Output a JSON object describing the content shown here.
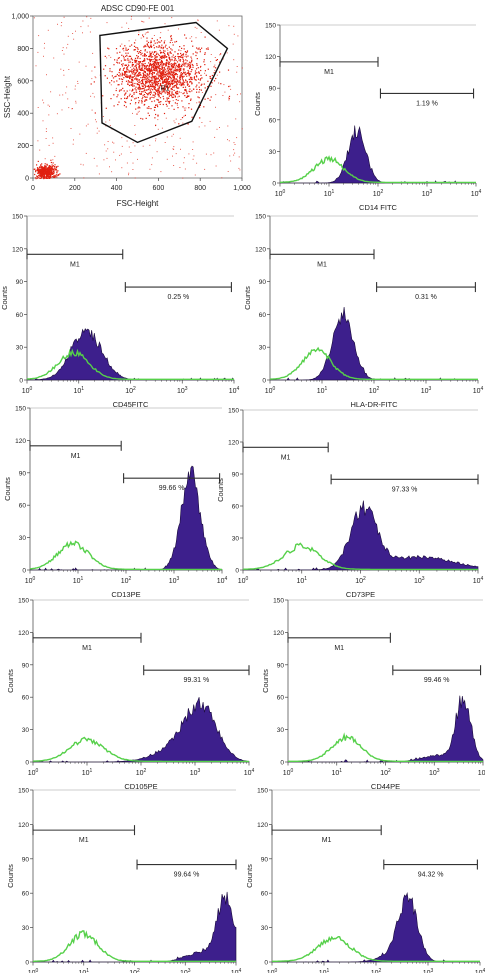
{
  "scatter": {
    "title": "ADSC CD90-FE 001",
    "xlabel": "FSC-Height",
    "ylabel": "SSC-Height",
    "gate_label": "R1",
    "x_ticks": [
      "0",
      "200",
      "400",
      "600",
      "800",
      "1,000"
    ],
    "y_ticks": [
      "0",
      "200",
      "400",
      "600",
      "800",
      "1,000"
    ],
    "colors": {
      "dots": "#e02010",
      "gate": "#111111"
    }
  },
  "histogram_common": {
    "ylabel": "Counts",
    "y_ticks": [
      "0",
      "30",
      "60",
      "90",
      "120",
      "150"
    ],
    "x_ticks": [
      "10^0",
      "10^1",
      "10^2",
      "10^3",
      "10^4"
    ],
    "gate_label": "M1",
    "colors": {
      "sample": "#3d1f8c",
      "control": "#56d04a",
      "marker": "#333333"
    }
  },
  "chart_data": [
    {
      "type": "scatter",
      "title": "ADSC CD90-FE 001",
      "xlabel": "FSC-Height",
      "ylabel": "SSC-Height",
      "xlim": [
        0,
        1000
      ],
      "ylim": [
        0,
        1000
      ],
      "clusters": [
        {
          "name": "",
          "center": [
            600,
            640
          ],
          "spread": [
            180,
            160
          ],
          "count": 1600
        },
        {
          "name": "",
          "center": [
            60,
            40
          ],
          "spread": [
            40,
            40
          ],
          "count": 450
        }
      ],
      "gate_R1": [
        [
          320,
          880
        ],
        [
          780,
          960
        ],
        [
          930,
          800
        ],
        [
          760,
          350
        ],
        [
          500,
          220
        ],
        [
          330,
          340
        ]
      ]
    },
    {
      "type": "histogram",
      "xlabel": "CD14 FITC",
      "percent": "1.19 %",
      "xlim": [
        0,
        4
      ],
      "ylim": [
        0,
        150
      ],
      "m1": [
        0,
        2
      ],
      "m2": [
        2.05,
        3.95
      ],
      "sample_peaks": [
        [
          1.57,
          0.18,
          50
        ]
      ],
      "control_peaks": [
        [
          1.0,
          0.3,
          22
        ]
      ]
    },
    {
      "type": "histogram",
      "xlabel": "CD45FITC",
      "percent": "0.25 %",
      "xlim": [
        0,
        4
      ],
      "ylim": [
        0,
        150
      ],
      "m1": [
        0,
        1.85
      ],
      "m2": [
        1.9,
        3.95
      ],
      "sample_peaks": [
        [
          1.15,
          0.3,
          43
        ]
      ],
      "control_peaks": [
        [
          0.9,
          0.3,
          24
        ]
      ]
    },
    {
      "type": "histogram",
      "xlabel": "HLA-DR-FITC",
      "percent": "0.31 %",
      "xlim": [
        0,
        4
      ],
      "ylim": [
        0,
        150
      ],
      "m1": [
        0,
        2.0
      ],
      "m2": [
        2.05,
        3.95
      ],
      "sample_peaks": [
        [
          1.4,
          0.2,
          60
        ]
      ],
      "control_peaks": [
        [
          0.9,
          0.28,
          26
        ]
      ]
    },
    {
      "type": "histogram",
      "xlabel": "CD13PE",
      "percent": "99.66 %",
      "xlim": [
        0,
        4
      ],
      "ylim": [
        0,
        150
      ],
      "m1": [
        0,
        1.9
      ],
      "m2": [
        1.95,
        3.95
      ],
      "sample_peaks": [
        [
          3.35,
          0.2,
          88
        ]
      ],
      "control_peaks": [
        [
          0.9,
          0.32,
          24
        ]
      ]
    },
    {
      "type": "histogram",
      "xlabel": "CD73PE",
      "percent": "97.33 %",
      "xlim": [
        0,
        4
      ],
      "ylim": [
        0,
        150
      ],
      "m1": [
        0,
        1.45
      ],
      "m2": [
        1.5,
        4.0
      ],
      "sample_peaks": [
        [
          2.05,
          0.22,
          55
        ],
        [
          3.0,
          0.6,
          12
        ]
      ],
      "control_peaks": [
        [
          1.0,
          0.3,
          22
        ]
      ]
    },
    {
      "type": "histogram",
      "xlabel": "CD105PE",
      "percent": "99.31 %",
      "xlim": [
        0,
        4
      ],
      "ylim": [
        0,
        150
      ],
      "m1": [
        0,
        2.0
      ],
      "m2": [
        2.05,
        4.0
      ],
      "sample_peaks": [
        [
          3.1,
          0.3,
          50
        ],
        [
          2.6,
          0.4,
          10
        ]
      ],
      "control_peaks": [
        [
          1.0,
          0.32,
          20
        ]
      ]
    },
    {
      "type": "histogram",
      "xlabel": "CD44PE",
      "percent": "99.46 %",
      "xlim": [
        0,
        4
      ],
      "ylim": [
        0,
        150
      ],
      "m1": [
        0,
        2.1
      ],
      "m2": [
        2.15,
        3.95
      ],
      "sample_peaks": [
        [
          3.6,
          0.15,
          58
        ],
        [
          3.1,
          0.35,
          6
        ]
      ],
      "control_peaks": [
        [
          1.2,
          0.3,
          22
        ]
      ]
    },
    {
      "type": "histogram",
      "xlabel": "CD90PE",
      "percent": "99.64 %",
      "xlim": [
        0,
        4
      ],
      "ylim": [
        0,
        150
      ],
      "m1": [
        0,
        2.0
      ],
      "m2": [
        2.05,
        4.0
      ],
      "sample_peaks": [
        [
          3.8,
          0.17,
          55
        ],
        [
          3.3,
          0.3,
          8
        ]
      ],
      "control_peaks": [
        [
          1.0,
          0.28,
          24
        ]
      ]
    },
    {
      "type": "histogram",
      "xlabel": "CD166PE",
      "percent": "94.32 %",
      "xlim": [
        0,
        4
      ],
      "ylim": [
        0,
        150
      ],
      "m1": [
        0,
        2.1
      ],
      "m2": [
        2.15,
        3.95
      ],
      "sample_peaks": [
        [
          2.62,
          0.18,
          55
        ],
        [
          2.3,
          0.25,
          6
        ]
      ],
      "control_peaks": [
        [
          1.2,
          0.32,
          20
        ]
      ]
    }
  ]
}
